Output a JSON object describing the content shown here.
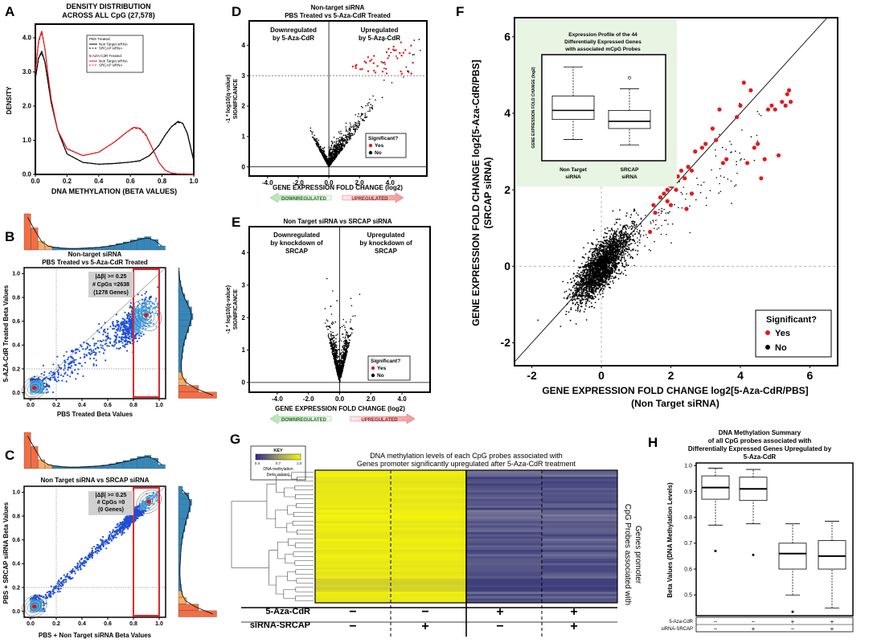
{
  "panels": {
    "A": {
      "letter": "A",
      "title1": "DENSITY DISTRIBUTION",
      "title2": "ACROSS ALL CpG (27,578)",
      "xlabel": "DNA METHYLATION (BETA VALUES)",
      "ylabel": "DENSITY",
      "legend": {
        "group1": "PBS Treated:",
        "group1_items": [
          "Non Target siRNA",
          "SRCAP siRNA"
        ],
        "group2": "5-AZA-CdR Treated:",
        "group2_items": [
          "Non Target siRNA",
          "SRCAP siRNA"
        ]
      }
    },
    "B": {
      "letter": "B",
      "title1": "Non-target siRNA",
      "title2": "PBS Treated vs 5-Aza-CdR Treated",
      "xlabel": "PBS Treated Beta Values",
      "ylabel": "5-AZA-CdR Treated Beta Values",
      "box1": "|Δβ| >= 0.25",
      "box2": "# CpGs =2638",
      "box3": "(1278 Genes)"
    },
    "C": {
      "letter": "C",
      "title1": "Non Target siRNA vs SRCAP siRNA",
      "xlabel": "PBS + Non Target siRNA Beta Values",
      "ylabel": "PBS + SRCAP siRNA Beta Values",
      "box1": "|Δβ| >= 0.25",
      "box2": "# CpGs =0",
      "box3": "(0 Genes)"
    },
    "D": {
      "letter": "D",
      "title1": "Non-target siRNA",
      "title2": "PBS Treated vs 5-Aza-CdR Treated",
      "left_note1": "Downregulated",
      "left_note2": "by 5-Aza-CdR",
      "right_note1": "Upregulated",
      "right_note2": "by 5-Aza-CdR",
      "xlabel": "GENE EXPRESSION FOLD CHANGE (log2)",
      "ylabel1": "-1 * log10(q-value)",
      "ylabel2": "SIGNIFICANCE",
      "legend_title": "Significant?",
      "legend_yes": "Yes",
      "legend_no": "No",
      "arrow_down": "DOWNREGULATED",
      "arrow_up": "UPREGULATED"
    },
    "E": {
      "letter": "E",
      "title1": "Non Target siRNA vs SRCAP siRNA",
      "left_note1": "Downregulated",
      "left_note2": "by knockdown of",
      "left_note3": "SRCAP",
      "right_note1": "Upregulated",
      "right_note2": "by knockdown of",
      "right_note3": "SRCAP",
      "xlabel": "GENE EXPRESSION FOLD CHANGE (log2)",
      "ylabel1": "-1 * log10(q-value)",
      "ylabel2": "SIGNIFICANCE",
      "legend_title": "Significant?",
      "legend_yes": "Yes",
      "legend_no": "No",
      "arrow_down": "DOWNREGULATED",
      "arrow_up": "UPREGULATED"
    },
    "F": {
      "letter": "F",
      "xlabel1": "GENE EXPRESSION FOLD CHANGE log2[5-Aza-CdR/PBS]",
      "xlabel2": "(Non Target siRNA)",
      "ylabel1": "GENE EXPRESSION FOLD CHANGE log2[5-Aza-CdR/PBS]",
      "ylabel2": "(SRCAP siRNA)",
      "legend_title": "Significant?",
      "legend_yes": "Yes",
      "legend_no": "No",
      "inset_title1": "Expression Profile of the 44",
      "inset_title2": "Differentially Expressed Genes",
      "inset_title3": "with associated mCpG Probes",
      "inset_ylabel": "GENE EXPRESSION FOLD CHANGE (log2)",
      "inset_cat1a": "Non Target",
      "inset_cat1b": "siRNA",
      "inset_cat2a": "SRCAP",
      "inset_cat2b": "siRNA"
    },
    "G": {
      "letter": "G",
      "key_title": "KEY",
      "key_ticks": [
        "0.4",
        "0.7",
        "1.0"
      ],
      "key_label1": "DNA methylation",
      "key_label2": "(beta values)",
      "title1": "DNA methylation levels of each CpG probes associated with",
      "title2": "Genes promoter significantly upregulated after 5-Aza-CdR treatment",
      "side1": "CpG Probes associated with",
      "side2": "Genes promoter",
      "row1_label": "5-Aza-CdR",
      "row2_label": "siRNA-SRCAP",
      "row1_signs": [
        "−",
        "−",
        "+",
        "+"
      ],
      "row2_signs": [
        "−",
        "+",
        "−",
        "+"
      ]
    },
    "H": {
      "letter": "H",
      "title1": "DNA Methylation Summary",
      "title2": "of all CpG probes associated with",
      "title3": "Differentially Expressed Genes Upregulated by",
      "title4": "5-Aza-CdR",
      "ylabel": "Beta Values (DNA Methylation Levels)",
      "row1_label": "5-Aza-CdR",
      "row2_label": "siRNA-SRCAP",
      "row1_signs": [
        "−",
        "−",
        "+",
        "+"
      ],
      "row2_signs": [
        "−",
        "+",
        "−",
        "+"
      ]
    }
  },
  "colors": {
    "red": "#e31a1c",
    "black": "#000000",
    "yellow": "#f2f20a",
    "navy": "#3a3a8c",
    "highlight_box": "#e0262b",
    "inset_bg": "#e8f5e3",
    "scatter_blue": "#1f4fd6"
  },
  "chart_data": [
    {
      "panel": "A",
      "type": "line",
      "title": "DENSITY DISTRIBUTION ACROSS ALL CpG (27,578)",
      "xlabel": "DNA METHYLATION (BETA VALUES)",
      "ylabel": "DENSITY",
      "xlim": [
        0,
        1
      ],
      "ylim": [
        0,
        4.4
      ],
      "xticks": [
        0.0,
        0.2,
        0.4,
        0.6,
        0.8,
        1.0
      ],
      "yticks": [
        0.0,
        1.0,
        2.0,
        3.0,
        4.0
      ],
      "series": [
        {
          "name": "PBS Non Target siRNA",
          "color": "#000000",
          "dash": false,
          "x": [
            0,
            0.02,
            0.04,
            0.06,
            0.08,
            0.1,
            0.14,
            0.2,
            0.3,
            0.4,
            0.5,
            0.6,
            0.66,
            0.72,
            0.78,
            0.82,
            0.86,
            0.9,
            0.93,
            0.96,
            1.0
          ],
          "y": [
            2.8,
            3.4,
            3.6,
            3.3,
            2.7,
            2.1,
            1.3,
            0.6,
            0.35,
            0.3,
            0.32,
            0.36,
            0.4,
            0.55,
            0.85,
            1.15,
            1.4,
            1.55,
            1.5,
            1.2,
            0.4
          ]
        },
        {
          "name": "PBS SRCAP siRNA",
          "color": "#000000",
          "dash": true,
          "x": [
            0,
            0.02,
            0.04,
            0.06,
            0.08,
            0.1,
            0.14,
            0.2,
            0.3,
            0.4,
            0.5,
            0.6,
            0.66,
            0.72,
            0.78,
            0.82,
            0.86,
            0.9,
            0.93,
            0.96,
            1.0
          ],
          "y": [
            2.8,
            3.4,
            3.55,
            3.3,
            2.7,
            2.1,
            1.3,
            0.6,
            0.35,
            0.3,
            0.32,
            0.36,
            0.4,
            0.55,
            0.85,
            1.15,
            1.4,
            1.52,
            1.5,
            1.2,
            0.4
          ]
        },
        {
          "name": "5-AZA-CdR Non Target siRNA",
          "color": "#e31a1c",
          "dash": false,
          "x": [
            0,
            0.02,
            0.04,
            0.06,
            0.08,
            0.1,
            0.14,
            0.2,
            0.3,
            0.4,
            0.5,
            0.58,
            0.62,
            0.66,
            0.7,
            0.74,
            0.78,
            0.82,
            0.86,
            0.9,
            1.0
          ],
          "y": [
            3.0,
            3.9,
            4.2,
            3.7,
            2.9,
            2.2,
            1.3,
            0.75,
            0.55,
            0.65,
            0.95,
            1.25,
            1.38,
            1.35,
            1.15,
            0.75,
            0.35,
            0.12,
            0.04,
            0.02,
            0.01
          ]
        },
        {
          "name": "5-AZA-CdR SRCAP siRNA",
          "color": "#e31a1c",
          "dash": true,
          "x": [
            0,
            0.02,
            0.04,
            0.06,
            0.08,
            0.1,
            0.14,
            0.2,
            0.3,
            0.4,
            0.5,
            0.58,
            0.62,
            0.66,
            0.7,
            0.74,
            0.78,
            0.82,
            0.86,
            0.9,
            1.0
          ],
          "y": [
            3.0,
            3.85,
            4.15,
            3.7,
            2.9,
            2.2,
            1.3,
            0.75,
            0.55,
            0.65,
            0.95,
            1.25,
            1.36,
            1.33,
            1.13,
            0.75,
            0.35,
            0.12,
            0.04,
            0.02,
            0.01
          ]
        }
      ]
    },
    {
      "panel": "B",
      "type": "scatter",
      "title": "Non-target siRNA PBS Treated vs 5-Aza-CdR Treated",
      "xlabel": "PBS Treated Beta Values",
      "ylabel": "5-AZA-CdR Treated Beta Values",
      "xlim": [
        -0.05,
        1.05
      ],
      "ylim": [
        -0.05,
        1.05
      ],
      "xticks": [
        0.0,
        0.2,
        0.4,
        0.6,
        0.8,
        1.0
      ],
      "yticks": [
        0.0,
        0.2,
        0.4,
        0.6,
        0.8,
        1.0
      ],
      "highlight_x": [
        0.8,
        1.0
      ],
      "dense_centers": [
        [
          0.03,
          0.04
        ],
        [
          0.9,
          0.65
        ]
      ],
      "annotation": [
        "|Δβ| >= 0.25",
        "# CpGs =2638",
        "(1278 Genes)"
      ]
    },
    {
      "panel": "C",
      "type": "scatter",
      "title": "Non Target siRNA vs SRCAP siRNA",
      "xlabel": "PBS + Non Target siRNA Beta Values",
      "ylabel": "PBS + SRCAP siRNA Beta Values",
      "xlim": [
        -0.05,
        1.05
      ],
      "ylim": [
        -0.05,
        1.05
      ],
      "xticks": [
        0.0,
        0.2,
        0.4,
        0.6,
        0.8,
        1.0
      ],
      "yticks": [
        0.0,
        0.2,
        0.4,
        0.6,
        0.8,
        1.0
      ],
      "highlight_x": [
        0.8,
        1.0
      ],
      "dense_centers": [
        [
          0.03,
          0.04
        ],
        [
          0.92,
          0.92
        ]
      ],
      "annotation": [
        "|Δβ| >= 0.25",
        "# CpGs =0",
        "(0 Genes)"
      ]
    },
    {
      "panel": "D",
      "type": "scatter",
      "title": "Non-target siRNA PBS Treated vs 5-Aza-CdR Treated",
      "xlabel": "GENE EXPRESSION FOLD CHANGE (log2)",
      "ylabel": "-1 * log10(q-value) SIGNIFICANCE",
      "xlim": [
        -5.2,
        6.4
      ],
      "ylim": [
        -0.3,
        4.8
      ],
      "xticks": [
        -4.0,
        -2.0,
        0,
        2.0,
        4.0
      ],
      "yticks": [
        0,
        1,
        2,
        3,
        4
      ],
      "threshold_y": 3.0
    },
    {
      "panel": "E",
      "type": "scatter",
      "title": "Non Target siRNA vs SRCAP siRNA",
      "xlabel": "GENE EXPRESSION FOLD CHANGE (log2)",
      "ylabel": "-1 * log10(q-value) SIGNIFICANCE",
      "xlim": [
        -5.8,
        5.8
      ],
      "ylim": [
        -0.3,
        4.8
      ],
      "xticks": [
        -4.0,
        -2.0,
        0,
        2.0,
        4.0
      ],
      "yticks": [
        0,
        1,
        2,
        3,
        4
      ]
    },
    {
      "panel": "F",
      "type": "scatter",
      "xlabel": "GENE EXPRESSION FOLD CHANGE log2[5-Aza-CdR/PBS] (Non Target siRNA)",
      "ylabel": "GENE EXPRESSION FOLD CHANGE log2[5-Aza-CdR/PBS] (SRCAP siRNA)",
      "xlim": [
        -2.5,
        6.8
      ],
      "ylim": [
        -2.6,
        6.5
      ],
      "xticks": [
        -2,
        0,
        2,
        4,
        6
      ],
      "yticks": [
        -2,
        0,
        2,
        4,
        6
      ],
      "significant_points": [
        [
          1.5,
          1.6
        ],
        [
          1.55,
          1.4
        ],
        [
          1.7,
          1.8
        ],
        [
          1.8,
          1.9
        ],
        [
          1.9,
          2.0
        ],
        [
          2.0,
          2.1
        ],
        [
          2.1,
          2.2
        ],
        [
          2.15,
          2.0
        ],
        [
          2.2,
          2.35
        ],
        [
          2.3,
          2.5
        ],
        [
          2.4,
          2.3
        ],
        [
          2.5,
          2.6
        ],
        [
          2.6,
          2.5
        ],
        [
          2.7,
          3.0
        ],
        [
          2.9,
          3.1
        ],
        [
          3.0,
          3.2
        ],
        [
          3.2,
          3.6
        ],
        [
          3.3,
          3.3
        ],
        [
          3.4,
          4.1
        ],
        [
          3.5,
          2.7
        ],
        [
          3.6,
          2.8
        ],
        [
          3.9,
          3.9
        ],
        [
          4.0,
          4.2
        ],
        [
          4.1,
          4.8
        ],
        [
          4.3,
          4.6
        ],
        [
          4.2,
          2.7
        ],
        [
          4.4,
          3.1
        ],
        [
          4.5,
          3.2
        ],
        [
          4.6,
          2.3
        ],
        [
          4.7,
          2.8
        ],
        [
          4.8,
          4.1
        ],
        [
          4.9,
          4.2
        ],
        [
          5.0,
          4.1
        ],
        [
          5.1,
          2.9
        ],
        [
          5.2,
          4.3
        ],
        [
          5.3,
          4.2
        ],
        [
          5.35,
          4.5
        ],
        [
          5.4,
          4.6
        ],
        [
          5.45,
          4.3
        ],
        [
          2.45,
          1.5
        ],
        [
          1.9,
          1.7
        ],
        [
          2.0,
          1.6
        ],
        [
          1.4,
          0.9
        ],
        [
          2.6,
          1.9
        ]
      ],
      "inset": {
        "type": "box",
        "title": "Expression Profile of the 44 Differentially Expressed Genes with associated mCpG Probes",
        "categories": [
          "Non Target siRNA",
          "SRCAP siRNA"
        ],
        "boxes": [
          {
            "whisker_low": 1.5,
            "q1": 2.6,
            "median": 3.1,
            "q3": 3.9,
            "whisker_high": 5.5
          },
          {
            "whisker_low": 1.2,
            "q1": 2.1,
            "median": 2.5,
            "q3": 3.1,
            "whisker_high": 4.3,
            "outliers": [
              4.9
            ]
          }
        ]
      }
    },
    {
      "panel": "G",
      "type": "heatmap",
      "title": "DNA methylation levels of each CpG probes associated with Genes promoter significantly upregulated after 5-Aza-CdR treatment",
      "columns": [
        "5-Aza-CdR − / siRNA-SRCAP −",
        "5-Aza-CdR − / siRNA-SRCAP +",
        "5-Aza-CdR + / siRNA-SRCAP −",
        "5-Aza-CdR + / siRNA-SRCAP +"
      ],
      "color_range": [
        0.4,
        1.0
      ]
    },
    {
      "panel": "H",
      "type": "box",
      "title": "DNA Methylation Summary of all CpG probes associated with Differentially Expressed Genes Upregulated by 5-Aza-CdR",
      "ylabel": "Beta Values (DNA Methylation Levels)",
      "ylim": [
        0.42,
        1.01
      ],
      "yticks": [
        0.5,
        0.6,
        0.7,
        0.8,
        0.9,
        1.0
      ],
      "boxes": [
        {
          "whisker_low": 0.77,
          "q1": 0.87,
          "median": 0.915,
          "q3": 0.96,
          "whisker_high": 0.99,
          "outliers": [
            0.67
          ]
        },
        {
          "whisker_low": 0.775,
          "q1": 0.865,
          "median": 0.91,
          "q3": 0.955,
          "whisker_high": 0.985,
          "outliers": [
            0.655
          ]
        },
        {
          "whisker_low": 0.5,
          "q1": 0.6,
          "median": 0.66,
          "q3": 0.7,
          "whisker_high": 0.775,
          "outliers": [
            0.435
          ]
        },
        {
          "whisker_low": 0.45,
          "q1": 0.6,
          "median": 0.65,
          "q3": 0.71,
          "whisker_high": 0.785
        }
      ]
    }
  ]
}
